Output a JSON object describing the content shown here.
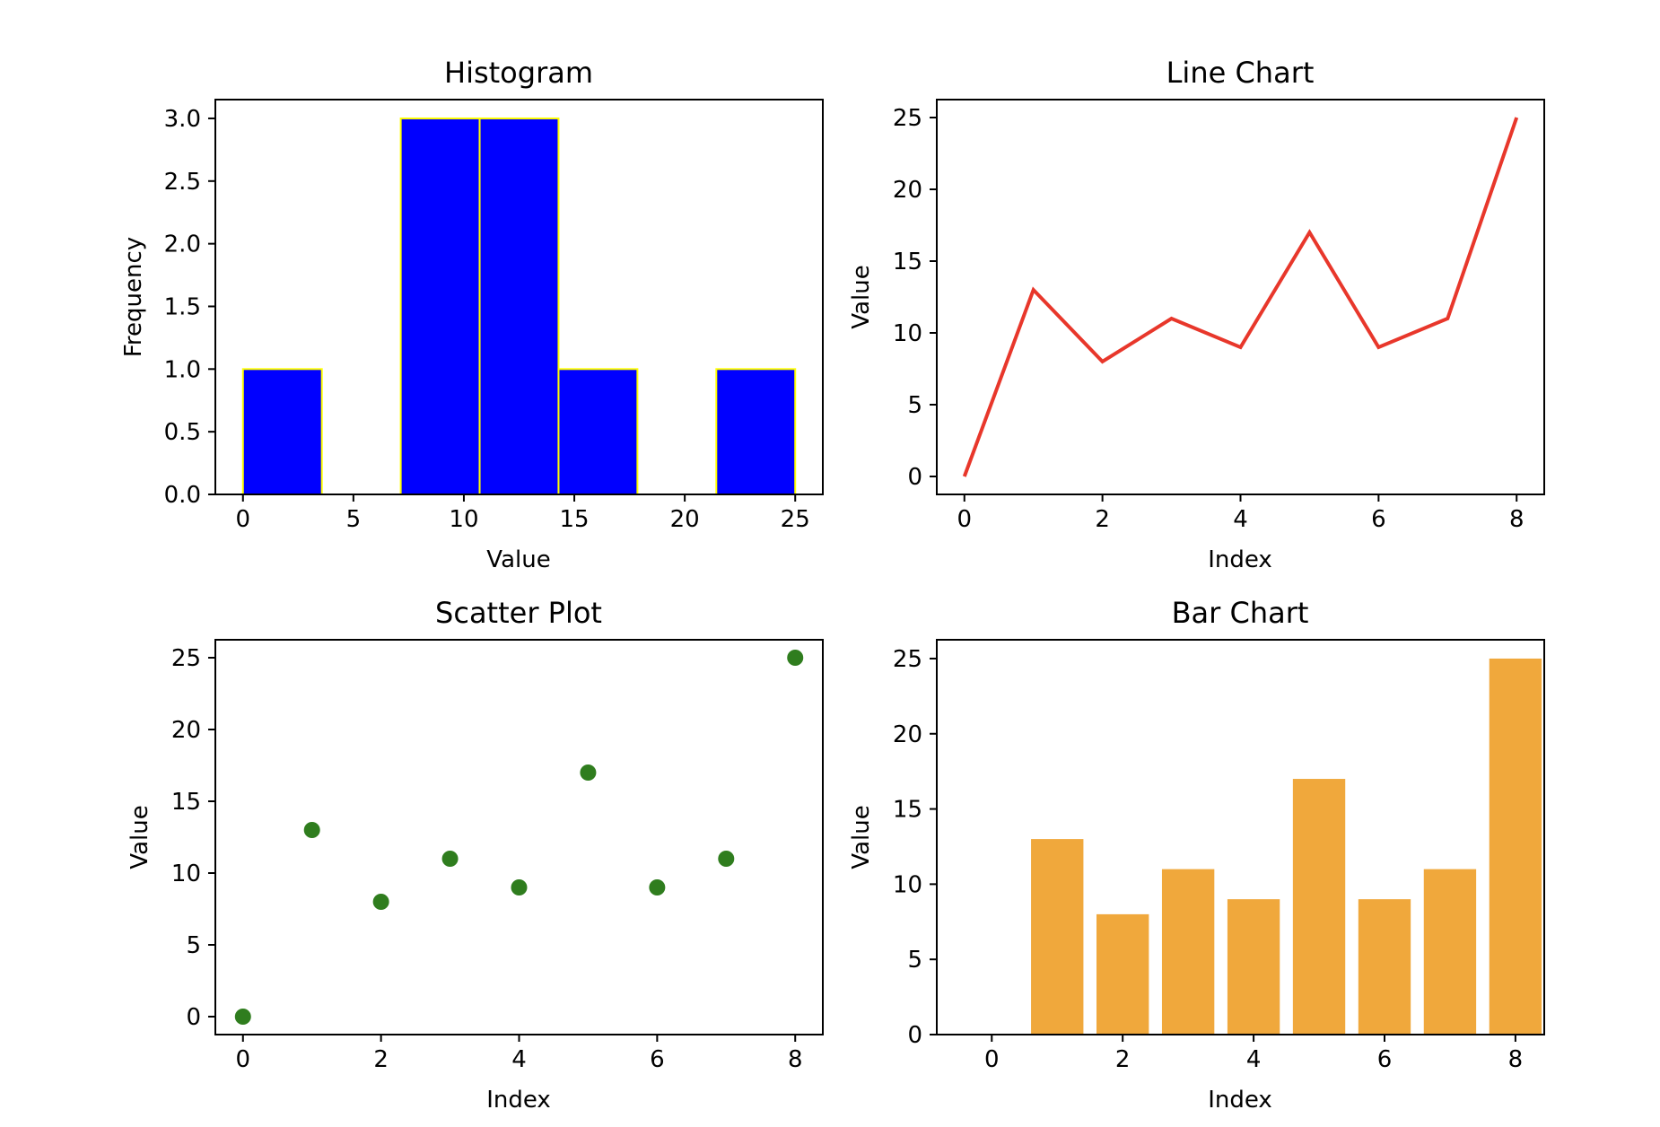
{
  "colors": {
    "histogram_fill": "#0000ff",
    "histogram_edge": "#ffff00",
    "line": "#e8372b",
    "scatter": "#2f7d1e",
    "bar": "#f0a83c"
  },
  "chart_data": [
    {
      "type": "bar",
      "title": "Histogram",
      "xlabel": "Value",
      "ylabel": "Frequency",
      "bin_edges": [
        0,
        3.5714,
        7.1429,
        10.7143,
        14.2857,
        17.8571,
        21.4286,
        25
      ],
      "values": [
        1,
        0,
        3,
        3,
        1,
        0,
        1
      ],
      "xlim": [
        -1.25,
        26.25
      ],
      "ylim": [
        0,
        3.15
      ],
      "xticks": [
        0,
        5,
        10,
        15,
        20,
        25
      ],
      "yticks": [
        0.0,
        0.5,
        1.0,
        1.5,
        2.0,
        2.5,
        3.0
      ],
      "ytick_labels": [
        "0.0",
        "0.5",
        "1.0",
        "1.5",
        "2.0",
        "2.5",
        "3.0"
      ],
      "grid": false
    },
    {
      "type": "line",
      "title": "Line Chart",
      "xlabel": "Index",
      "ylabel": "Value",
      "x": [
        0,
        1,
        2,
        3,
        4,
        5,
        6,
        7,
        8
      ],
      "y": [
        0,
        13,
        8,
        11,
        9,
        17,
        9,
        11,
        25
      ],
      "xlim": [
        -0.4,
        8.4
      ],
      "ylim": [
        -1.25,
        26.25
      ],
      "xticks": [
        0,
        2,
        4,
        6,
        8
      ],
      "yticks": [
        0,
        5,
        10,
        15,
        20,
        25
      ],
      "grid": false
    },
    {
      "type": "scatter",
      "title": "Scatter Plot",
      "xlabel": "Index",
      "ylabel": "Value",
      "x": [
        0,
        1,
        2,
        3,
        4,
        5,
        6,
        7,
        8
      ],
      "y": [
        0,
        13,
        8,
        11,
        9,
        17,
        9,
        11,
        25
      ],
      "xlim": [
        -0.4,
        8.4
      ],
      "ylim": [
        -1.25,
        26.25
      ],
      "xticks": [
        0,
        2,
        4,
        6,
        8
      ],
      "yticks": [
        0,
        5,
        10,
        15,
        20,
        25
      ],
      "grid": false
    },
    {
      "type": "bar",
      "title": "Bar Chart",
      "xlabel": "Index",
      "ylabel": "Value",
      "categories": [
        0,
        1,
        2,
        3,
        4,
        5,
        6,
        7,
        8
      ],
      "values": [
        0,
        13,
        8,
        11,
        9,
        17,
        9,
        11,
        25
      ],
      "xlim": [
        -0.84,
        8.44
      ],
      "ylim": [
        0,
        26.25
      ],
      "xticks": [
        0,
        2,
        4,
        6,
        8
      ],
      "yticks": [
        0,
        5,
        10,
        15,
        20,
        25
      ],
      "grid": false
    }
  ]
}
